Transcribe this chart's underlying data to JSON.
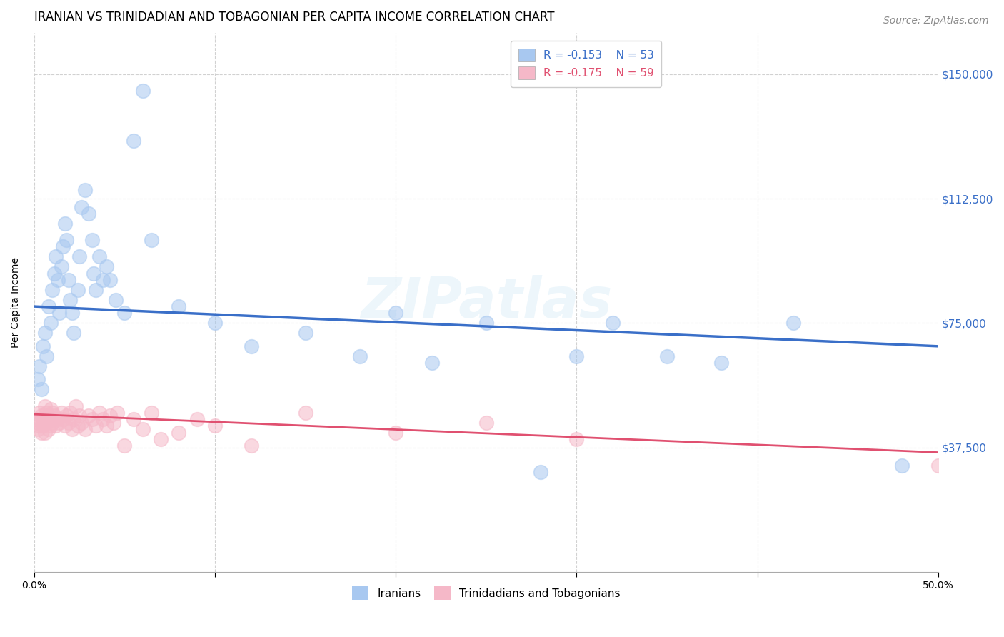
{
  "title": "IRANIAN VS TRINIDADIAN AND TOBAGONIAN PER CAPITA INCOME CORRELATION CHART",
  "source": "Source: ZipAtlas.com",
  "ylabel": "Per Capita Income",
  "ytick_labels": [
    "$37,500",
    "$75,000",
    "$112,500",
    "$150,000"
  ],
  "ytick_values": [
    37500,
    75000,
    112500,
    150000
  ],
  "xlim": [
    0.0,
    0.5
  ],
  "ylim": [
    0,
    162500
  ],
  "watermark": "ZIPatlas",
  "legend_iranians": "Iranians",
  "legend_tnt": "Trinidadians and Tobagonians",
  "r_iranians": "-0.153",
  "n_iranians": "53",
  "r_tnt": "-0.175",
  "n_tnt": "59",
  "blue_color": "#a8c8f0",
  "pink_color": "#f5b8c8",
  "line_blue": "#3a6fc8",
  "line_pink": "#e05070",
  "iranians_x": [
    0.002,
    0.003,
    0.004,
    0.005,
    0.006,
    0.007,
    0.008,
    0.009,
    0.01,
    0.011,
    0.012,
    0.013,
    0.014,
    0.015,
    0.016,
    0.017,
    0.018,
    0.019,
    0.02,
    0.021,
    0.022,
    0.024,
    0.025,
    0.026,
    0.028,
    0.03,
    0.032,
    0.033,
    0.034,
    0.036,
    0.038,
    0.04,
    0.042,
    0.045,
    0.05,
    0.055,
    0.06,
    0.065,
    0.08,
    0.1,
    0.12,
    0.15,
    0.18,
    0.2,
    0.22,
    0.25,
    0.28,
    0.3,
    0.32,
    0.35,
    0.38,
    0.42,
    0.48
  ],
  "iranians_y": [
    58000,
    62000,
    55000,
    68000,
    72000,
    65000,
    80000,
    75000,
    85000,
    90000,
    95000,
    88000,
    78000,
    92000,
    98000,
    105000,
    100000,
    88000,
    82000,
    78000,
    72000,
    85000,
    95000,
    110000,
    115000,
    108000,
    100000,
    90000,
    85000,
    95000,
    88000,
    92000,
    88000,
    82000,
    78000,
    130000,
    145000,
    100000,
    80000,
    75000,
    68000,
    72000,
    65000,
    78000,
    63000,
    75000,
    30000,
    65000,
    75000,
    65000,
    63000,
    75000,
    32000
  ],
  "tnt_x": [
    0.001,
    0.002,
    0.002,
    0.003,
    0.003,
    0.004,
    0.004,
    0.005,
    0.005,
    0.006,
    0.006,
    0.007,
    0.007,
    0.008,
    0.008,
    0.009,
    0.009,
    0.01,
    0.01,
    0.011,
    0.012,
    0.013,
    0.014,
    0.015,
    0.016,
    0.017,
    0.018,
    0.019,
    0.02,
    0.021,
    0.022,
    0.023,
    0.024,
    0.025,
    0.026,
    0.028,
    0.03,
    0.032,
    0.034,
    0.036,
    0.038,
    0.04,
    0.042,
    0.044,
    0.046,
    0.05,
    0.055,
    0.06,
    0.065,
    0.07,
    0.08,
    0.09,
    0.1,
    0.12,
    0.15,
    0.2,
    0.25,
    0.3,
    0.5
  ],
  "tnt_y": [
    46000,
    45000,
    43000,
    48000,
    44000,
    47000,
    42000,
    46000,
    44000,
    50000,
    42000,
    48000,
    45000,
    47000,
    43000,
    49000,
    44000,
    48000,
    45000,
    47000,
    44000,
    46000,
    45000,
    48000,
    46000,
    44000,
    47000,
    45000,
    48000,
    43000,
    46000,
    50000,
    44000,
    47000,
    45000,
    43000,
    47000,
    46000,
    44000,
    48000,
    46000,
    44000,
    47000,
    45000,
    48000,
    38000,
    46000,
    43000,
    48000,
    40000,
    42000,
    46000,
    44000,
    38000,
    48000,
    42000,
    45000,
    40000,
    32000
  ],
  "blue_trend_x": [
    0.0,
    0.5
  ],
  "blue_trend_y": [
    80000,
    68000
  ],
  "pink_trend_x": [
    0.0,
    0.5
  ],
  "pink_trend_y": [
    47500,
    36000
  ],
  "grid_color": "#cccccc",
  "background_color": "#ffffff",
  "title_fontsize": 12,
  "axis_label_fontsize": 10,
  "tick_fontsize": 10,
  "source_fontsize": 10
}
